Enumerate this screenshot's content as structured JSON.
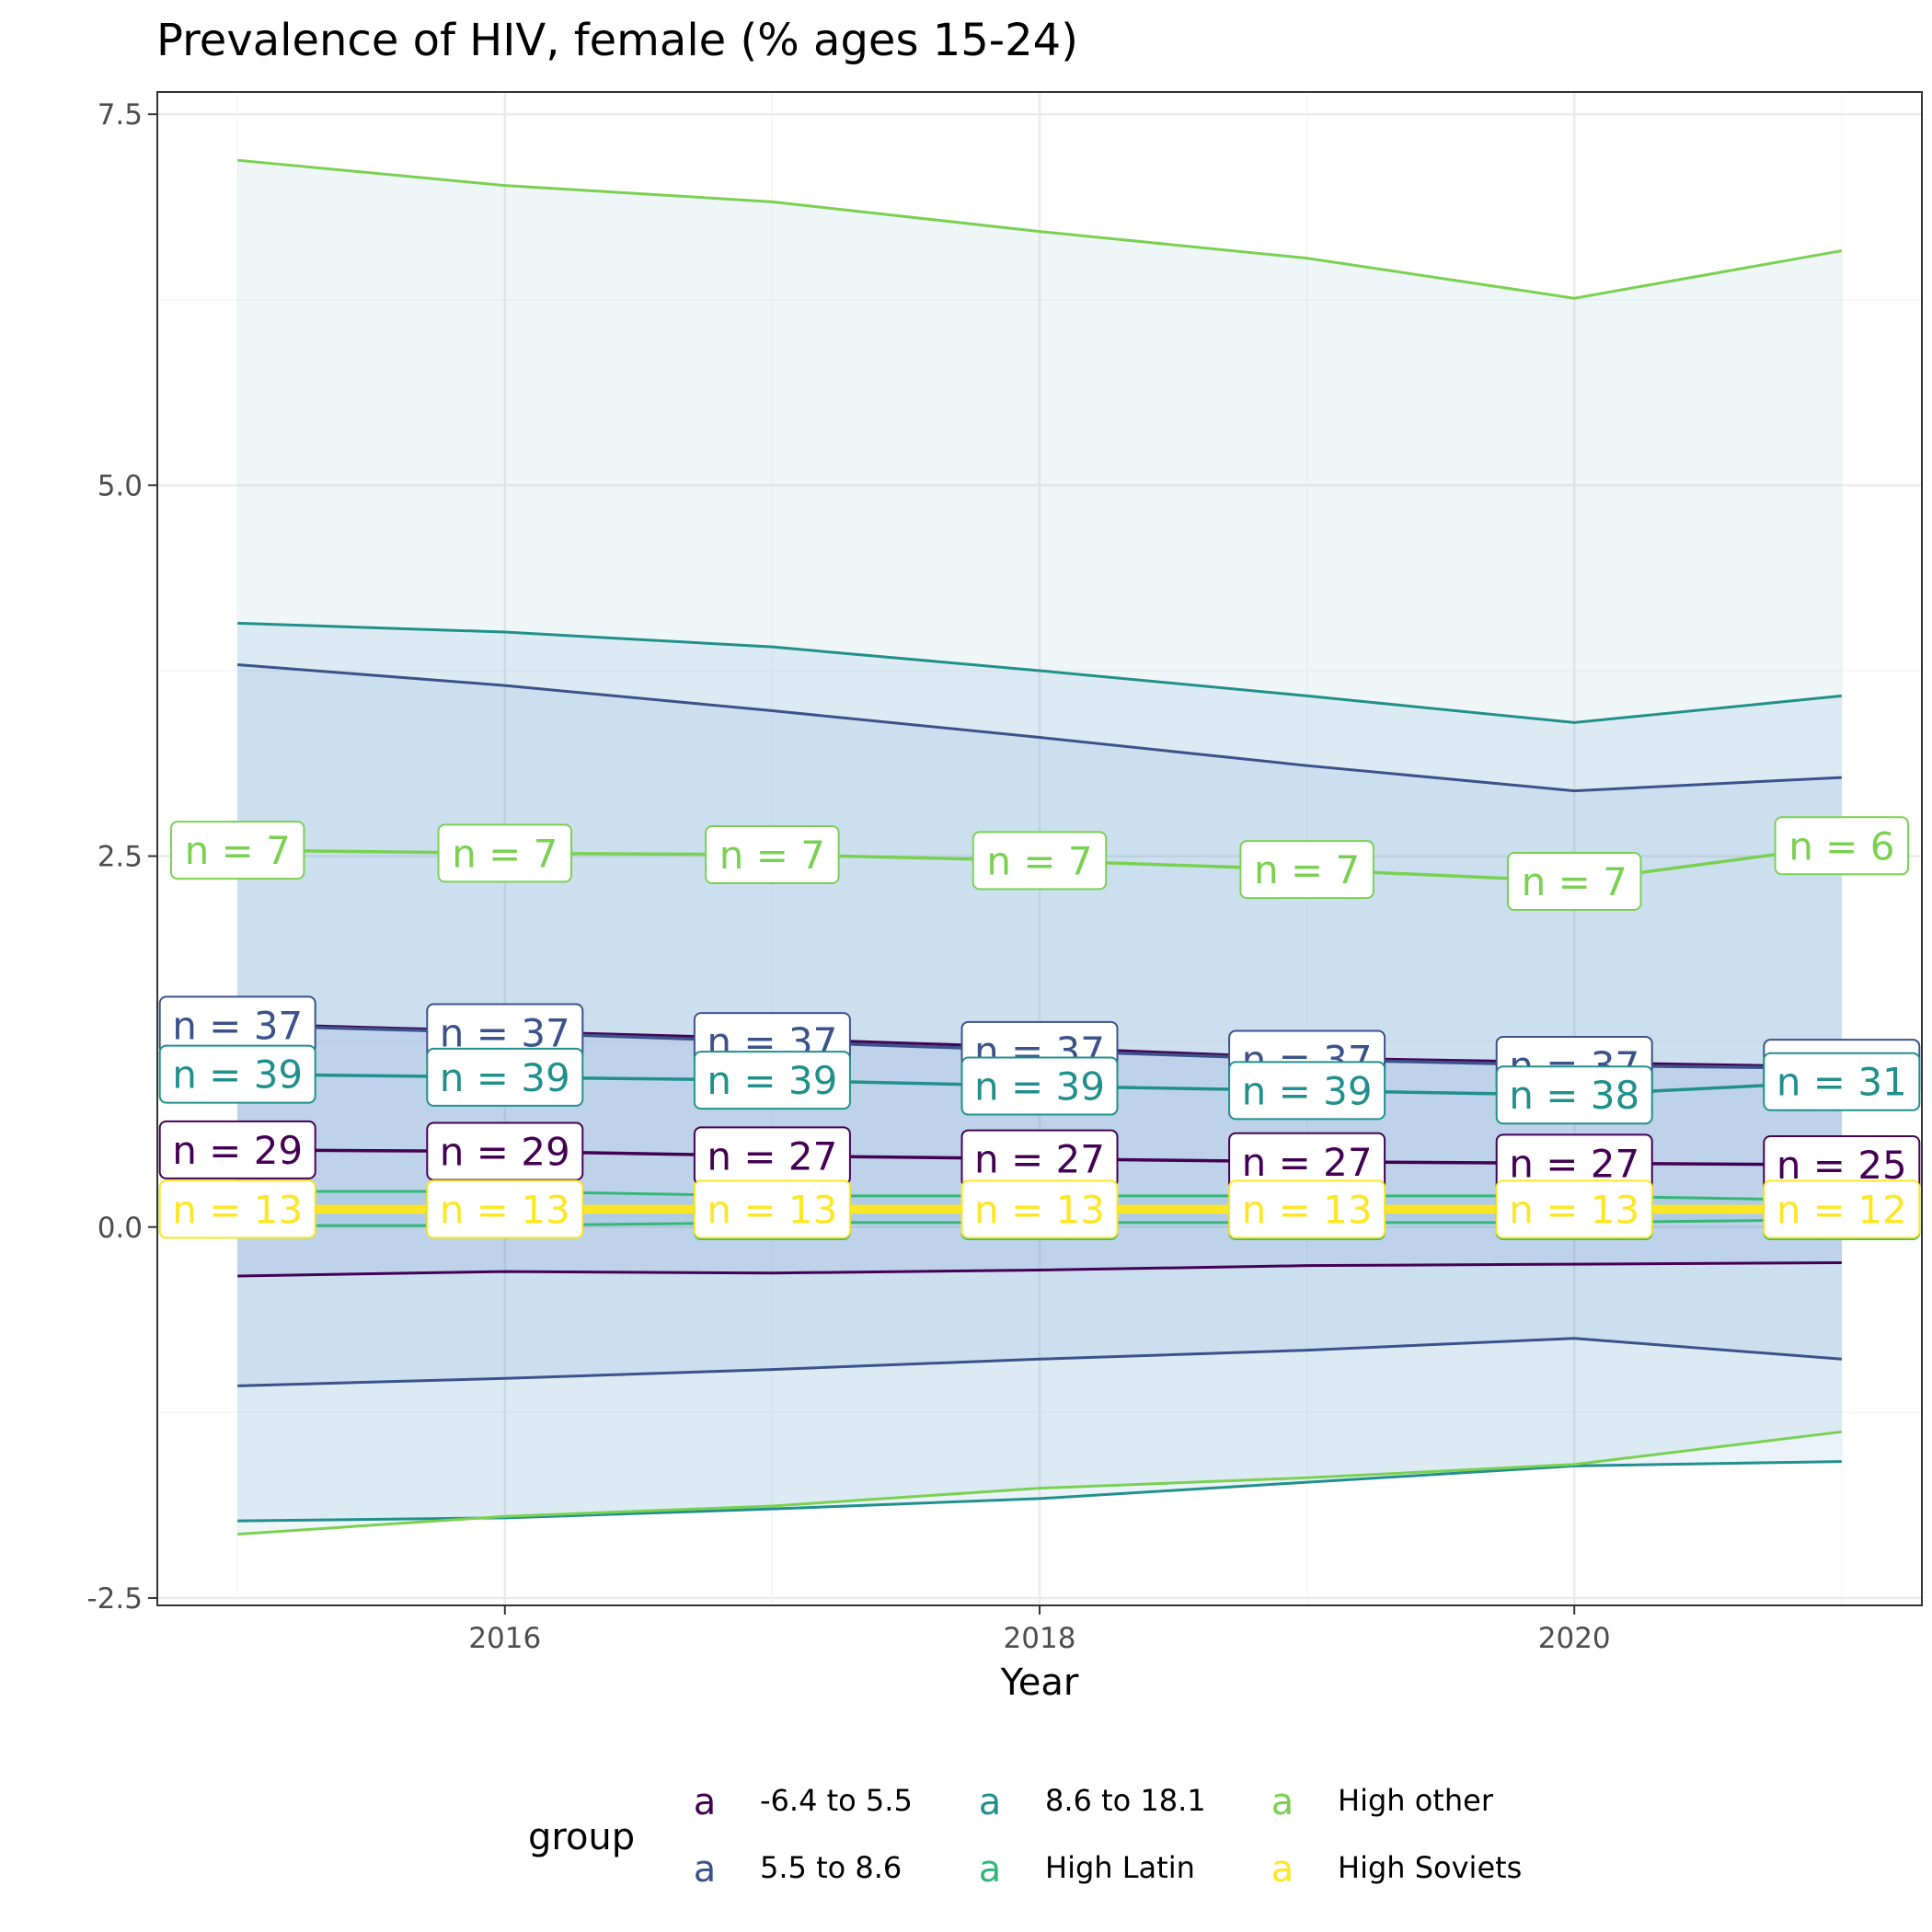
{
  "chart_data": {
    "type": "line",
    "title": "Prevalence of HIV, female (% ages 15-24)",
    "xlabel": "Year",
    "ylabel": "",
    "x": [
      2015,
      2016,
      2017,
      2018,
      2019,
      2020,
      2021
    ],
    "xlim": [
      2014.7,
      2021.3
    ],
    "ylim": [
      -2.55,
      7.65
    ],
    "x_ticks": [
      2016,
      2018,
      2020
    ],
    "x_tick_labels": [
      "2016",
      "2018",
      "2020"
    ],
    "y_ticks": [
      -2.5,
      0,
      2.5,
      5,
      7.5
    ],
    "y_tick_labels": [
      "-2.5",
      "0.0",
      "2.5",
      "5.0",
      "7.5"
    ],
    "grid": true,
    "legend": {
      "title": "group",
      "position": "bottom",
      "key_glyph": "a"
    },
    "series": [
      {
        "name": "-6.4 to 5.5",
        "color": "#440154",
        "mean": [
          0.52,
          0.51,
          0.48,
          0.46,
          0.44,
          0.43,
          0.42
        ],
        "lower": [
          -0.33,
          -0.3,
          -0.31,
          -0.29,
          -0.26,
          -0.25,
          -0.24
        ],
        "upper": [
          1.37,
          1.32,
          1.27,
          1.21,
          1.14,
          1.11,
          1.08
        ],
        "n": [
          "n = 29",
          "n = 29",
          "n = 27",
          "n = 27",
          "n = 27",
          "n = 27",
          "n = 25"
        ]
      },
      {
        "name": "5.5 to 8.6",
        "color": "#3b528b",
        "mean": [
          1.36,
          1.31,
          1.25,
          1.19,
          1.13,
          1.09,
          1.07
        ],
        "lower": [
          -1.07,
          -1.02,
          -0.96,
          -0.89,
          -0.83,
          -0.75,
          -0.89
        ],
        "upper": [
          3.79,
          3.65,
          3.48,
          3.3,
          3.11,
          2.94,
          3.03
        ],
        "n": [
          "n = 37",
          "n = 37",
          "n = 37",
          "n = 37",
          "n = 37",
          "n = 37",
          "n = 31"
        ]
      },
      {
        "name": "8.6 to 18.1",
        "color": "#21908c",
        "mean": [
          1.03,
          1.01,
          0.99,
          0.95,
          0.92,
          0.89,
          0.98
        ],
        "lower": [
          -1.98,
          -1.96,
          -1.9,
          -1.83,
          -1.72,
          -1.61,
          -1.58
        ],
        "upper": [
          4.07,
          4.01,
          3.91,
          3.75,
          3.58,
          3.4,
          3.58
        ],
        "n": [
          "n = 39",
          "n = 39",
          "n = 39",
          "n = 39",
          "n = 39",
          "n = 38",
          "n = 31"
        ]
      },
      {
        "name": "High Latin",
        "color": "#35b779",
        "mean": [
          0.12,
          0.12,
          0.11,
          0.11,
          0.11,
          0.11,
          0.11
        ],
        "lower": [
          0.01,
          0.01,
          0.03,
          0.03,
          0.03,
          0.03,
          0.05
        ],
        "upper": [
          0.24,
          0.24,
          0.21,
          0.21,
          0.21,
          0.21,
          0.18
        ],
        "n": [
          "n = 13",
          "n = 13",
          "n = 13",
          "n = 13",
          "n = 13",
          "n = 13",
          "n = 12"
        ]
      },
      {
        "name": "High other",
        "color": "#7ad151",
        "mean": [
          2.54,
          2.52,
          2.51,
          2.47,
          2.41,
          2.33,
          2.57
        ],
        "lower": [
          -2.07,
          -1.95,
          -1.88,
          -1.76,
          -1.69,
          -1.6,
          -1.38
        ],
        "upper": [
          7.19,
          7.02,
          6.91,
          6.71,
          6.53,
          6.26,
          6.58
        ],
        "n": [
          "n = 7",
          "n = 7",
          "n = 7",
          "n = 7",
          "n = 7",
          "n = 7",
          "n = 6"
        ]
      },
      {
        "name": "High Soviets",
        "color": "#fde725",
        "mean": [
          0.12,
          0.12,
          0.12,
          0.12,
          0.12,
          0.12,
          0.12
        ],
        "lower": [
          0.1,
          0.1,
          0.1,
          0.1,
          0.1,
          0.1,
          0.1
        ],
        "upper": [
          0.14,
          0.14,
          0.14,
          0.14,
          0.14,
          0.14,
          0.14
        ],
        "n": [
          "n = 13",
          "n = 13",
          "n = 13",
          "n = 13",
          "n = 13",
          "n = 13",
          "n = 12"
        ]
      }
    ]
  }
}
